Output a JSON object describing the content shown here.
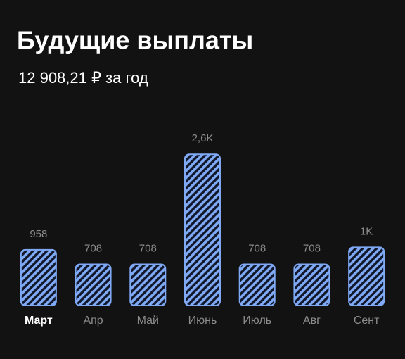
{
  "chart_data": {
    "type": "bar",
    "title": "Будущие выплаты",
    "subtitle": "12 908,21 ₽ за год",
    "categories": [
      "Март",
      "Апр",
      "Май",
      "Июнь",
      "Июль",
      "Авг",
      "Сент"
    ],
    "values": [
      958,
      708,
      708,
      2600,
      708,
      708,
      1000
    ],
    "value_labels": [
      "958",
      "708",
      "708",
      "2,6K",
      "708",
      "708",
      "1K"
    ],
    "color": "#7fa8f5",
    "selected": 0
  }
}
